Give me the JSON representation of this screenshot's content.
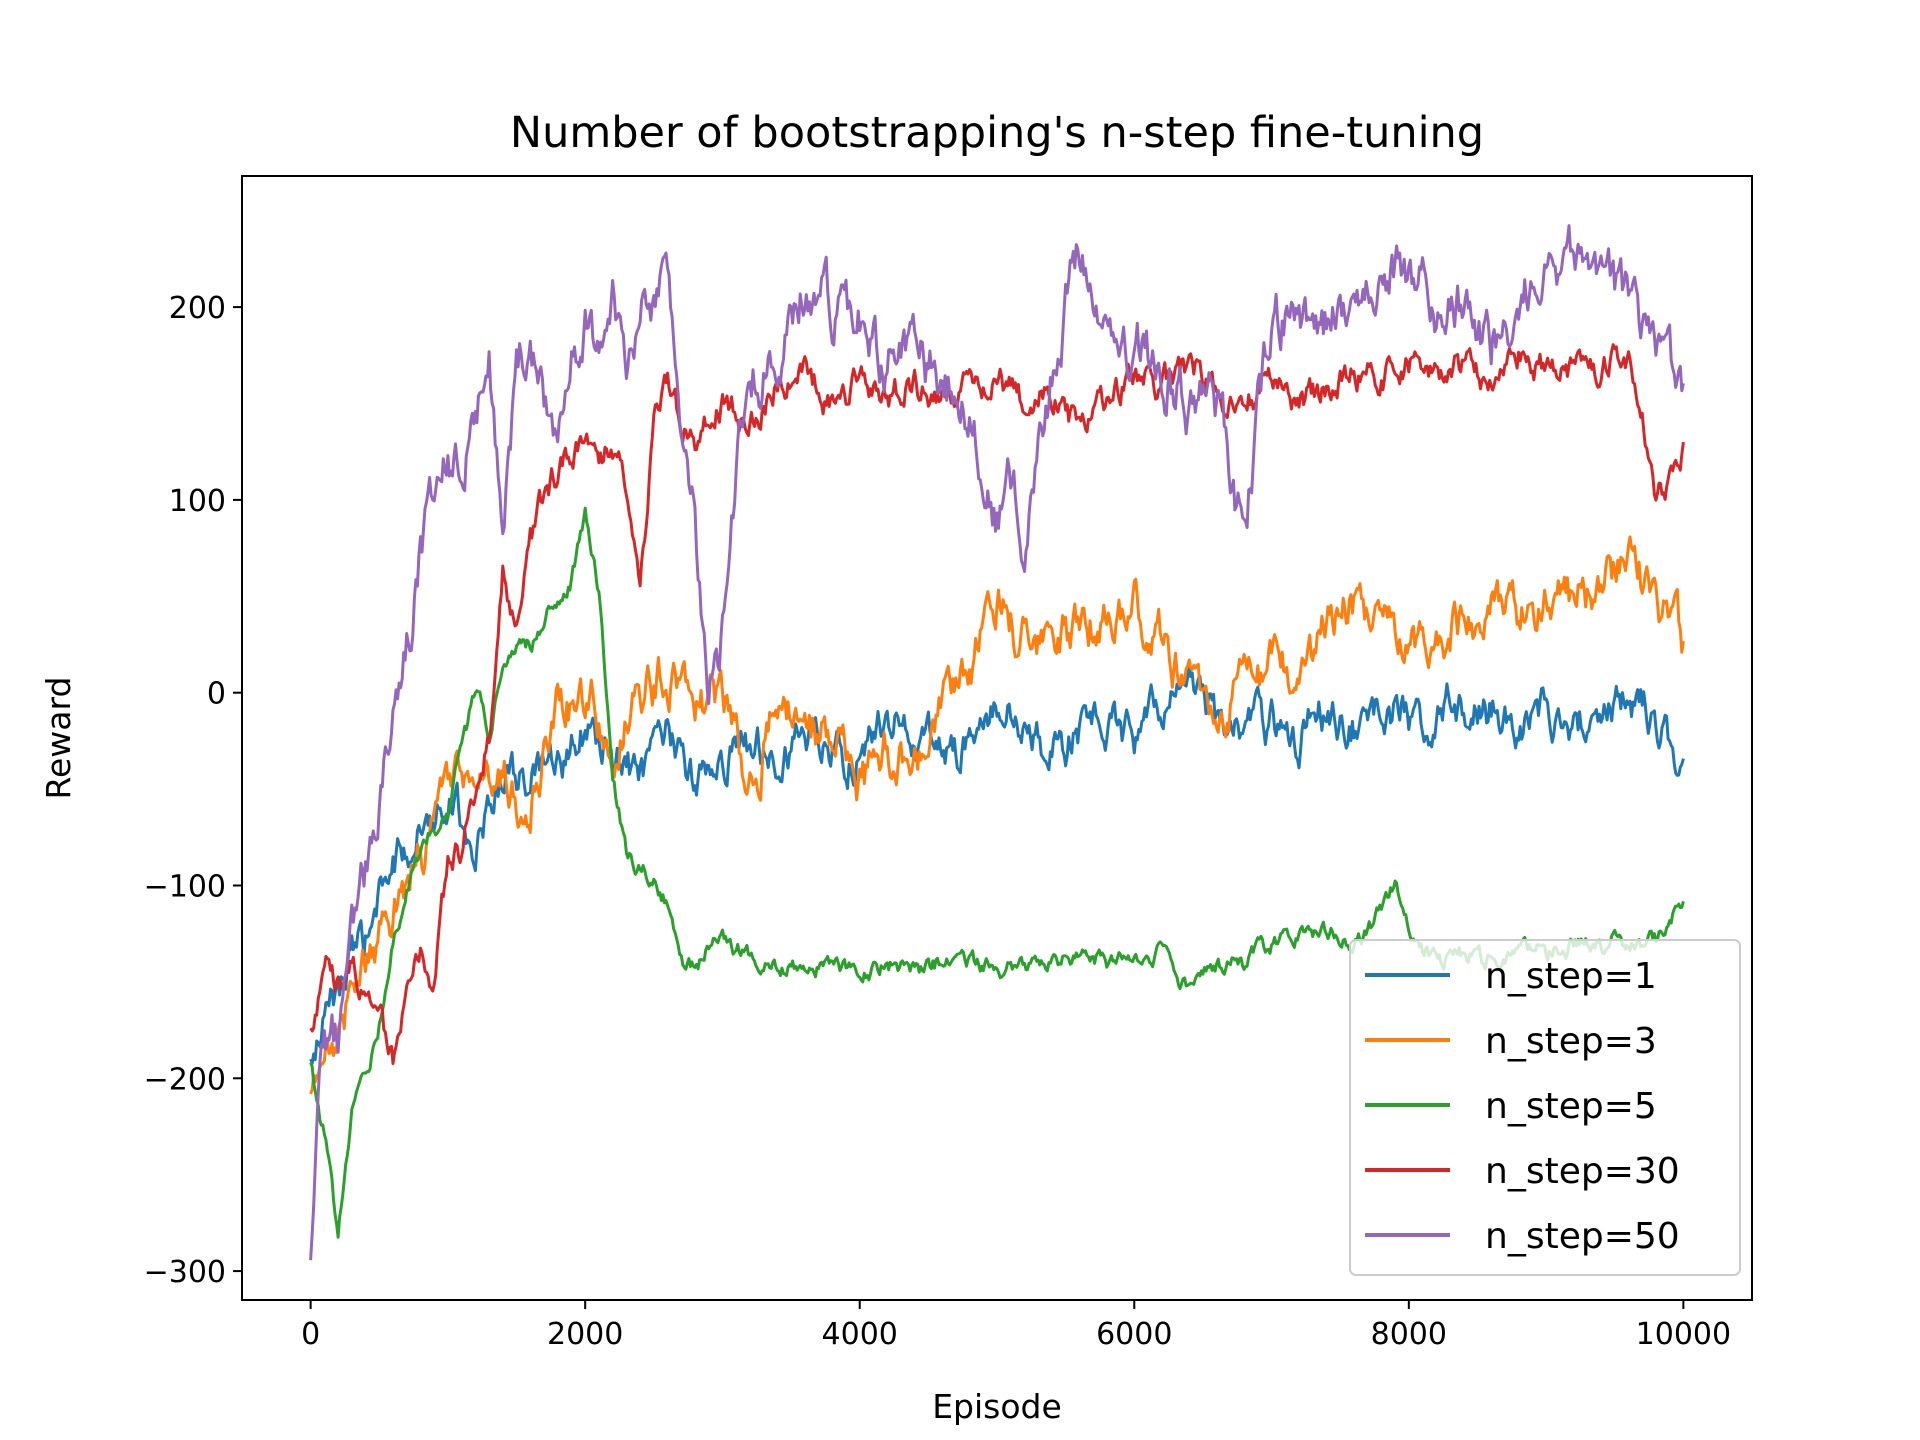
{
  "chart_data": {
    "type": "line",
    "title": "Number of bootstrapping's n-step fine-tuning",
    "xlabel": "Episode",
    "ylabel": "Reward",
    "xlim": [
      -500,
      10500
    ],
    "ylim": [
      -315,
      268
    ],
    "xticks": [
      0,
      2000,
      4000,
      6000,
      8000,
      10000
    ],
    "yticks": [
      -300,
      -200,
      -100,
      0,
      100,
      200
    ],
    "xtick_labels": [
      "0",
      "2000",
      "4000",
      "6000",
      "8000",
      "10000"
    ],
    "ytick_labels": [
      "−300",
      "−200",
      "−100",
      "0",
      "100",
      "200"
    ],
    "legend_position": "lower right",
    "grid": false,
    "series": [
      {
        "name": "n_step=1",
        "color": "#1f77b4",
        "x": [
          0,
          200,
          400,
          600,
          800,
          1000,
          1200,
          1400,
          1600,
          1800,
          2000,
          2200,
          2400,
          2600,
          2800,
          3000,
          3200,
          3400,
          3600,
          3800,
          4000,
          4200,
          4400,
          4600,
          4800,
          5000,
          5200,
          5400,
          5600,
          5800,
          6000,
          6200,
          6400,
          6600,
          6800,
          7000,
          7200,
          7400,
          7600,
          7800,
          8000,
          8200,
          8400,
          8600,
          8800,
          9000,
          9200,
          9400,
          9600,
          9800,
          10000
        ],
        "y": [
          -195,
          -150,
          -130,
          -90,
          -70,
          -50,
          -80,
          -40,
          -45,
          -40,
          -20,
          -35,
          -45,
          -25,
          -45,
          -35,
          -25,
          -30,
          -20,
          -30,
          -35,
          -10,
          -25,
          -25,
          -30,
          -5,
          -20,
          -35,
          -20,
          -15,
          -25,
          -5,
          5,
          -15,
          -20,
          -15,
          -20,
          -10,
          -15,
          -5,
          -15,
          -10,
          -5,
          -10,
          -15,
          -10,
          -15,
          -10,
          -5,
          -10,
          -40
        ]
      },
      {
        "name": "n_step=3",
        "color": "#ff7f0e",
        "x": [
          0,
          200,
          400,
          600,
          800,
          1000,
          1200,
          1400,
          1600,
          1800,
          2000,
          2200,
          2400,
          2600,
          2800,
          3000,
          3200,
          3400,
          3600,
          3800,
          4000,
          4200,
          4400,
          4600,
          4800,
          5000,
          5200,
          5400,
          5600,
          5800,
          6000,
          6200,
          6400,
          6600,
          6800,
          7000,
          7200,
          7400,
          7600,
          7800,
          8000,
          8200,
          8400,
          8600,
          8800,
          9000,
          9200,
          9400,
          9600,
          9800,
          10000
        ],
        "y": [
          -215,
          -170,
          -140,
          -110,
          -85,
          -50,
          -40,
          -45,
          -60,
          -10,
          0,
          -20,
          0,
          10,
          -5,
          0,
          -50,
          -10,
          -20,
          -20,
          -50,
          -30,
          -40,
          -10,
          5,
          50,
          25,
          20,
          35,
          40,
          45,
          30,
          5,
          -10,
          0,
          10,
          5,
          30,
          45,
          30,
          20,
          35,
          40,
          45,
          40,
          45,
          50,
          55,
          70,
          45,
          25
        ]
      },
      {
        "name": "n_step=5",
        "color": "#2ca02c",
        "x": [
          0,
          100,
          200,
          300,
          400,
          500,
          600,
          700,
          800,
          900,
          1000,
          1100,
          1200,
          1300,
          1400,
          1500,
          1600,
          1700,
          1800,
          1900,
          2000,
          2100,
          2200,
          2300,
          2400,
          2500,
          2600,
          2700,
          2800,
          2900,
          3000,
          3200,
          3400,
          3600,
          3800,
          4000,
          4200,
          4400,
          4600,
          4800,
          5000,
          5200,
          5400,
          5600,
          5800,
          6000,
          6200,
          6400,
          6600,
          6800,
          7000,
          7200,
          7400,
          7600,
          7800,
          7900,
          8000,
          8200,
          8400,
          8600,
          8800,
          9000,
          9200,
          9400,
          9600,
          9800,
          10000
        ],
        "y": [
          -195,
          -230,
          -280,
          -220,
          -200,
          -170,
          -130,
          -100,
          -80,
          -70,
          -60,
          -30,
          0,
          -20,
          10,
          20,
          25,
          40,
          50,
          60,
          95,
          50,
          -40,
          -85,
          -90,
          -95,
          -110,
          -140,
          -145,
          -130,
          -130,
          -135,
          -140,
          -145,
          -140,
          -145,
          -140,
          -145,
          -140,
          -140,
          -145,
          -140,
          -140,
          -135,
          -140,
          -140,
          -135,
          -155,
          -140,
          -140,
          -130,
          -125,
          -125,
          -130,
          -115,
          -100,
          -125,
          -140,
          -135,
          -140,
          -135,
          -135,
          -130,
          -130,
          -130,
          -130,
          -110
        ]
      },
      {
        "name": "n_step=30",
        "color": "#d62728",
        "x": [
          0,
          100,
          200,
          300,
          400,
          500,
          600,
          700,
          800,
          900,
          1000,
          1100,
          1200,
          1300,
          1400,
          1500,
          1600,
          1700,
          1800,
          1900,
          2000,
          2100,
          2200,
          2300,
          2400,
          2500,
          2600,
          2700,
          2800,
          3000,
          3200,
          3400,
          3600,
          3800,
          4000,
          4200,
          4400,
          4600,
          4800,
          5000,
          5200,
          5400,
          5600,
          5800,
          6000,
          6200,
          6400,
          6600,
          6800,
          7000,
          7200,
          7400,
          7600,
          7800,
          8000,
          8200,
          8400,
          8600,
          8800,
          9000,
          9200,
          9400,
          9600,
          9700,
          9800,
          9900,
          10000
        ],
        "y": [
          -180,
          -140,
          -150,
          -140,
          -160,
          -170,
          -190,
          -160,
          -130,
          -150,
          -90,
          -80,
          -50,
          -20,
          60,
          30,
          80,
          100,
          115,
          120,
          140,
          125,
          130,
          110,
          60,
          140,
          160,
          140,
          130,
          150,
          140,
          160,
          165,
          150,
          160,
          155,
          160,
          150,
          160,
          165,
          150,
          155,
          135,
          150,
          165,
          160,
          170,
          160,
          150,
          165,
          150,
          160,
          165,
          165,
          170,
          165,
          170,
          160,
          175,
          170,
          165,
          170,
          175,
          150,
          100,
          110,
          130
        ]
      },
      {
        "name": "n_step=50",
        "color": "#9467bd",
        "x": [
          0,
          100,
          200,
          300,
          400,
          500,
          600,
          700,
          800,
          900,
          1000,
          1100,
          1200,
          1300,
          1400,
          1500,
          1600,
          1700,
          1800,
          1900,
          2000,
          2100,
          2200,
          2300,
          2400,
          2500,
          2600,
          2700,
          2800,
          2900,
          3000,
          3100,
          3200,
          3400,
          3600,
          3800,
          4000,
          4200,
          4400,
          4600,
          4800,
          5000,
          5100,
          5200,
          5400,
          5500,
          5600,
          5800,
          6000,
          6200,
          6400,
          6600,
          6800,
          6900,
          7000,
          7200,
          7400,
          7600,
          7800,
          8000,
          8200,
          8400,
          8600,
          8800,
          9000,
          9200,
          9400,
          9600,
          9800,
          10000
        ],
        "y": [
          -285,
          -170,
          -180,
          -130,
          -90,
          -50,
          -10,
          20,
          70,
          100,
          130,
          110,
          150,
          170,
          100,
          170,
          190,
          150,
          140,
          170,
          200,
          180,
          200,
          170,
          190,
          200,
          220,
          150,
          90,
          -10,
          30,
          110,
          160,
          180,
          210,
          200,
          190,
          170,
          170,
          160,
          150,
          90,
          110,
          80,
          160,
          200,
          230,
          190,
          180,
          170,
          150,
          150,
          80,
          140,
          190,
          200,
          190,
          210,
          220,
          220,
          200,
          200,
          180,
          200,
          220,
          230,
          210,
          200,
          175,
          155
        ]
      }
    ]
  }
}
